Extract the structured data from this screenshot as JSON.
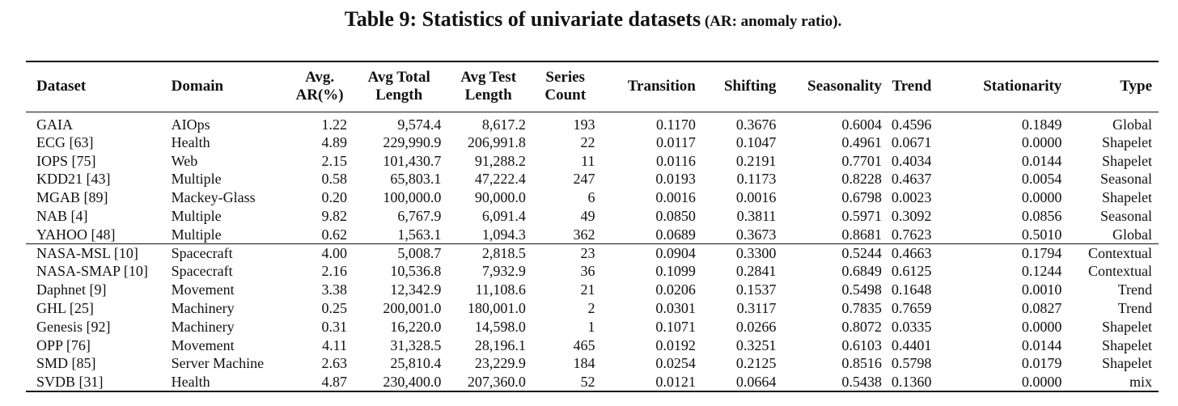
{
  "caption": {
    "main": "Table 9: Statistics of univariate datasets",
    "note": " (AR: anomaly ratio)."
  },
  "headers": {
    "dataset": "Dataset",
    "domain": "Domain",
    "avg_ar_1": "Avg.",
    "avg_ar_2": "AR(%)",
    "avg_total_1": "Avg Total",
    "avg_total_2": "Length",
    "avg_test_1": "Avg Test",
    "avg_test_2": "Length",
    "series_1": "Series",
    "series_2": "Count",
    "transition": "Transition",
    "shifting": "Shifting",
    "seasonality": "Seasonality",
    "trend": "Trend",
    "stationarity": "Stationarity",
    "type": "Type"
  },
  "rows_group1": [
    {
      "dataset": "GAIA",
      "domain": "AIOps",
      "ar": "1.22",
      "total": "9,574.4",
      "test": "8,617.2",
      "count": "193",
      "transition": "0.1170",
      "shifting": "0.3676",
      "seasonality": "0.6004",
      "trend": "0.4596",
      "stationarity": "0.1849",
      "type": "Global"
    },
    {
      "dataset": "ECG [63]",
      "domain": "Health",
      "ar": "4.89",
      "total": "229,990.9",
      "test": "206,991.8",
      "count": "22",
      "transition": "0.0117",
      "shifting": "0.1047",
      "seasonality": "0.4961",
      "trend": "0.0671",
      "stationarity": "0.0000",
      "type": "Shapelet"
    },
    {
      "dataset": "IOPS [75]",
      "domain": "Web",
      "ar": "2.15",
      "total": "101,430.7",
      "test": "91,288.2",
      "count": "11",
      "transition": "0.0116",
      "shifting": "0.2191",
      "seasonality": "0.7701",
      "trend": "0.4034",
      "stationarity": "0.0144",
      "type": "Shapelet"
    },
    {
      "dataset": "KDD21 [43]",
      "domain": "Multiple",
      "ar": "0.58",
      "total": "65,803.1",
      "test": "47,222.4",
      "count": "247",
      "transition": "0.0193",
      "shifting": "0.1173",
      "seasonality": "0.8228",
      "trend": "0.4637",
      "stationarity": "0.0054",
      "type": "Seasonal"
    },
    {
      "dataset": "MGAB [89]",
      "domain": "Mackey-Glass",
      "ar": "0.20",
      "total": "100,000.0",
      "test": "90,000.0",
      "count": "6",
      "transition": "0.0016",
      "shifting": "0.0016",
      "seasonality": "0.6798",
      "trend": "0.0023",
      "stationarity": "0.0000",
      "type": "Shapelet"
    },
    {
      "dataset": "NAB [4]",
      "domain": "Multiple",
      "ar": "9.82",
      "total": "6,767.9",
      "test": "6,091.4",
      "count": "49",
      "transition": "0.0850",
      "shifting": "0.3811",
      "seasonality": "0.5971",
      "trend": "0.3092",
      "stationarity": "0.0856",
      "type": "Seasonal"
    },
    {
      "dataset": "YAHOO [48]",
      "domain": "Multiple",
      "ar": "0.62",
      "total": "1,563.1",
      "test": "1,094.3",
      "count": "362",
      "transition": "0.0689",
      "shifting": "0.3673",
      "seasonality": "0.8681",
      "trend": "0.7623",
      "stationarity": "0.5010",
      "type": "Global"
    }
  ],
  "rows_group2": [
    {
      "dataset": "NASA-MSL [10]",
      "domain": "Spacecraft",
      "ar": "4.00",
      "total": "5,008.7",
      "test": "2,818.5",
      "count": "23",
      "transition": "0.0904",
      "shifting": "0.3300",
      "seasonality": "0.5244",
      "trend": "0.4663",
      "stationarity": "0.1794",
      "type": "Contextual"
    },
    {
      "dataset": "NASA-SMAP [10]",
      "domain": "Spacecraft",
      "ar": "2.16",
      "total": "10,536.8",
      "test": "7,932.9",
      "count": "36",
      "transition": "0.1099",
      "shifting": "0.2841",
      "seasonality": "0.6849",
      "trend": "0.6125",
      "stationarity": "0.1244",
      "type": "Contextual"
    },
    {
      "dataset": "Daphnet [9]",
      "domain": "Movement",
      "ar": "3.38",
      "total": "12,342.9",
      "test": "11,108.6",
      "count": "21",
      "transition": "0.0206",
      "shifting": "0.1537",
      "seasonality": "0.5498",
      "trend": "0.1648",
      "stationarity": "0.0010",
      "type": "Trend"
    },
    {
      "dataset": "GHL [25]",
      "domain": "Machinery",
      "ar": "0.25",
      "total": "200,001.0",
      "test": "180,001.0",
      "count": "2",
      "transition": "0.0301",
      "shifting": "0.3117",
      "seasonality": "0.7835",
      "trend": "0.7659",
      "stationarity": "0.0827",
      "type": "Trend"
    },
    {
      "dataset": "Genesis [92]",
      "domain": "Machinery",
      "ar": "0.31",
      "total": "16,220.0",
      "test": "14,598.0",
      "count": "1",
      "transition": "0.1071",
      "shifting": "0.0266",
      "seasonality": "0.8072",
      "trend": "0.0335",
      "stationarity": "0.0000",
      "type": "Shapelet"
    },
    {
      "dataset": "OPP [76]",
      "domain": "Movement",
      "ar": "4.11",
      "total": "31,328.5",
      "test": "28,196.1",
      "count": "465",
      "transition": "0.0192",
      "shifting": "0.3251",
      "seasonality": "0.6103",
      "trend": "0.4401",
      "stationarity": "0.0144",
      "type": "Shapelet"
    },
    {
      "dataset": "SMD [85]",
      "domain": "Server Machine",
      "ar": "2.63",
      "total": "25,810.4",
      "test": "23,229.9",
      "count": "184",
      "transition": "0.0254",
      "shifting": "0.2125",
      "seasonality": "0.8516",
      "trend": "0.5798",
      "stationarity": "0.0179",
      "type": "Shapelet"
    },
    {
      "dataset": "SVDB [31]",
      "domain": "Health",
      "ar": "4.87",
      "total": "230,400.0",
      "test": "207,360.0",
      "count": "52",
      "transition": "0.0121",
      "shifting": "0.0664",
      "seasonality": "0.5438",
      "trend": "0.1360",
      "stationarity": "0.0000",
      "type": "mix"
    }
  ]
}
